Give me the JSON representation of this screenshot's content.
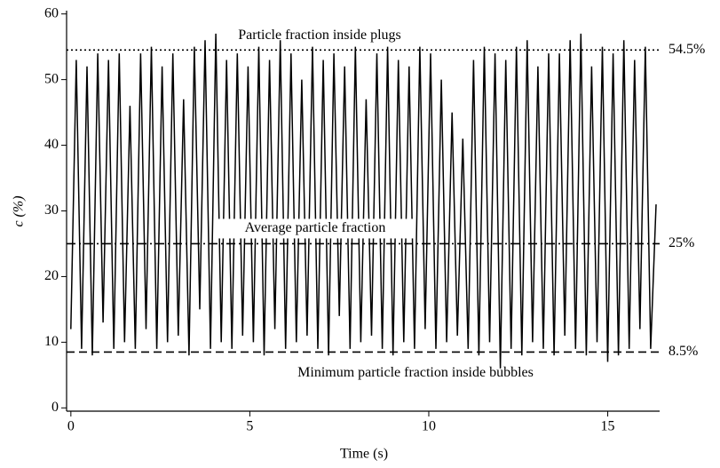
{
  "chart_data": {
    "type": "line",
    "xlabel": "Time (s)",
    "ylabel": "c (%)",
    "color": "#000000",
    "xlim": [
      -0.12,
      16.45
    ],
    "ylim": [
      -0.5,
      60.5
    ],
    "xticks": [
      0,
      5,
      10,
      15
    ],
    "yticks": [
      0,
      10,
      20,
      30,
      40,
      50,
      60
    ],
    "x": [
      0,
      0.15,
      0.3,
      0.45,
      0.6,
      0.75,
      0.9,
      1.05,
      1.2,
      1.35,
      1.5,
      1.65,
      1.8,
      1.95,
      2.1,
      2.25,
      2.4,
      2.55,
      2.7,
      2.85,
      3,
      3.15,
      3.3,
      3.45,
      3.6,
      3.75,
      3.9,
      4.05,
      4.2,
      4.35,
      4.5,
      4.65,
      4.8,
      4.95,
      5.1,
      5.25,
      5.4,
      5.55,
      5.7,
      5.85,
      6,
      6.15,
      6.3,
      6.45,
      6.6,
      6.75,
      6.9,
      7.05,
      7.2,
      7.35,
      7.5,
      7.65,
      7.8,
      7.95,
      8.1,
      8.25,
      8.4,
      8.55,
      8.7,
      8.85,
      9,
      9.15,
      9.3,
      9.45,
      9.6,
      9.75,
      9.9,
      10.05,
      10.2,
      10.35,
      10.5,
      10.65,
      10.8,
      10.95,
      11.1,
      11.25,
      11.4,
      11.55,
      11.7,
      11.85,
      12,
      12.15,
      12.3,
      12.45,
      12.6,
      12.75,
      12.9,
      13.05,
      13.2,
      13.35,
      13.5,
      13.65,
      13.8,
      13.95,
      14.1,
      14.25,
      14.4,
      14.55,
      14.7,
      14.85,
      15,
      15.15,
      15.3,
      15.45,
      15.6,
      15.75,
      15.9,
      16.05,
      16.2,
      16.35
    ],
    "values": [
      12,
      53,
      9,
      52,
      8,
      54,
      13,
      53,
      9,
      54,
      10,
      46,
      9,
      54,
      12,
      55,
      9,
      52,
      10,
      54,
      11,
      47,
      8,
      55,
      15,
      56,
      9,
      57,
      10,
      53,
      9,
      54,
      11,
      52,
      10,
      55,
      8,
      53,
      12,
      56,
      9,
      54,
      10,
      50,
      11,
      55,
      9,
      53,
      8,
      54,
      14,
      52,
      9,
      55,
      10,
      47,
      11,
      54,
      9,
      55,
      8,
      53,
      10,
      52,
      9,
      55,
      12,
      54,
      9,
      50,
      10,
      45,
      11,
      41,
      9,
      53,
      8,
      55,
      10,
      54,
      6,
      53,
      9,
      55,
      8,
      56,
      10,
      52,
      9,
      54,
      8,
      54,
      11,
      56,
      9,
      57,
      8,
      52,
      10,
      55,
      7,
      54,
      8,
      56,
      9,
      53,
      12,
      55,
      9,
      31
    ],
    "reference_lines": [
      {
        "value": 54.5,
        "label": "54.5%",
        "style": "dotted",
        "annotation": "Particle fraction inside plugs"
      },
      {
        "value": 25,
        "label": "25%",
        "style": "dashdot",
        "annotation": "Average particle fraction"
      },
      {
        "value": 8.5,
        "label": "8.5%",
        "style": "dashed",
        "annotation": "Minimum particle fraction inside bubbles"
      }
    ]
  }
}
